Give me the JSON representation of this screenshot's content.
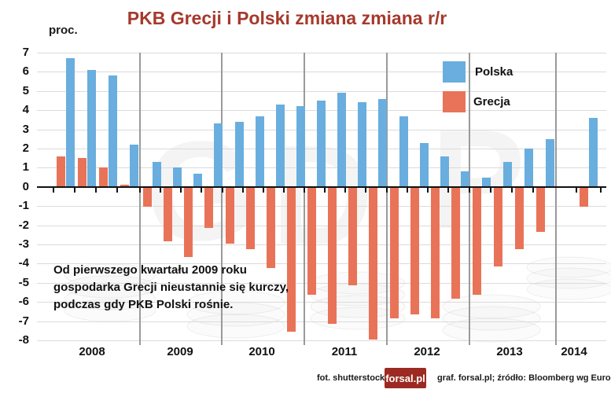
{
  "title": "PKB Grecji i Polski zmiana zmiana r/r",
  "y_axis_label": "proc.",
  "legend": {
    "polska": "Polska",
    "grecja": "Grecja"
  },
  "annotation": {
    "line1": "Od pierwszego kwartału 2009 roku",
    "line2": "gospodarka Grecji nieustannie się kurczy,",
    "line3": "podczas gdy PKB Polski rośnie."
  },
  "footer": {
    "photo_credit": "fot. shutterstock",
    "logo_text": "forsal.pl",
    "credits": "graf. forsal.pl;  źródło: Bloomberg wg Eurostat"
  },
  "colors": {
    "polska": "#69AEDE",
    "grecja": "#E97358",
    "title": "#A6392C",
    "logo_bg": "#9C2A22",
    "gridline": "#DBDBDB",
    "year_line": "#9A9A9A"
  },
  "watermark_letters": [
    "G",
    "D",
    "P"
  ],
  "chart_data": {
    "type": "bar",
    "title": "PKB Grecji i Polski zmiana zmiana r/r",
    "xlabel": "",
    "ylabel": "proc.",
    "ylim": [
      -8,
      7
    ],
    "ytick_step": 1,
    "grid": true,
    "legend_position": "top-right",
    "years": [
      "2008",
      "2009",
      "2010",
      "2011",
      "2012",
      "2013",
      "2014"
    ],
    "quarters_per_year": [
      4,
      4,
      4,
      4,
      4,
      4,
      1
    ],
    "series": [
      {
        "name": "Grecja",
        "color": "#E97358",
        "values": [
          1.6,
          1.5,
          1.0,
          0.1,
          -1.0,
          -2.8,
          -3.6,
          -2.1,
          -2.9,
          -3.2,
          -4.2,
          -7.5,
          -5.6,
          -7.1,
          -5.1,
          -7.9,
          -6.8,
          -6.6,
          -6.8,
          -5.8,
          -5.6,
          -4.1,
          -3.2,
          -2.3,
          -1.0
        ]
      },
      {
        "name": "Polska",
        "color": "#69AEDE",
        "values": [
          6.7,
          6.1,
          5.8,
          2.2,
          1.3,
          1.0,
          0.7,
          3.3,
          3.4,
          3.7,
          4.3,
          4.2,
          4.5,
          4.9,
          4.4,
          4.6,
          3.7,
          2.3,
          1.6,
          0.8,
          0.5,
          1.3,
          2.0,
          2.5,
          3.6
        ]
      }
    ]
  }
}
